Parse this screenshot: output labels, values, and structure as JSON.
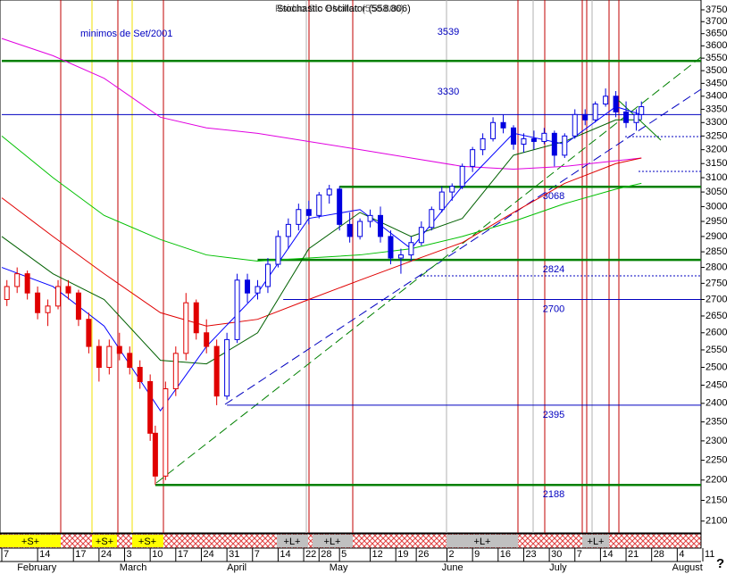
{
  "chart_data": {
    "type": "candlestick",
    "title": "Stochastic Oscillator (558.806)",
    "subtitle": "Rsiduo Sto BMatec (558.806)",
    "annotation": "minimos de Set/2001",
    "help": "?",
    "log_y": true,
    "ylim": [
      2072,
      3792
    ],
    "yticks": [
      2100,
      2150,
      2200,
      2250,
      2300,
      2350,
      2400,
      2450,
      2500,
      2550,
      2600,
      2650,
      2700,
      2750,
      2800,
      2850,
      2900,
      2950,
      3000,
      3050,
      3100,
      3150,
      3200,
      3250,
      3300,
      3350,
      3400,
      3450,
      3500,
      3550,
      3600,
      3650,
      3700,
      3750
    ],
    "xlim": [
      0,
      137
    ],
    "xticks": [
      {
        "value": 0,
        "label": "7"
      },
      {
        "value": 7,
        "label": "14"
      },
      {
        "value": 14,
        "label": "17"
      },
      {
        "value": 19,
        "label": "24"
      },
      {
        "value": 24,
        "label": "3"
      },
      {
        "value": 29,
        "label": "10"
      },
      {
        "value": 34,
        "label": "17"
      },
      {
        "value": 39,
        "label": "24"
      },
      {
        "value": 44,
        "label": "31"
      },
      {
        "value": 49,
        "label": "7"
      },
      {
        "value": 54,
        "label": "14"
      },
      {
        "value": 59,
        "label": "22"
      },
      {
        "value": 62,
        "label": "28"
      },
      {
        "value": 66,
        "label": "5"
      },
      {
        "value": 72,
        "label": "12"
      },
      {
        "value": 77,
        "label": "19"
      },
      {
        "value": 81,
        "label": "26"
      },
      {
        "value": 87,
        "label": "2"
      },
      {
        "value": 92,
        "label": "9"
      },
      {
        "value": 97,
        "label": "16"
      },
      {
        "value": 102,
        "label": "23"
      },
      {
        "value": 107,
        "label": "30"
      },
      {
        "value": 112,
        "label": "7"
      },
      {
        "value": 117,
        "label": "14"
      },
      {
        "value": 122,
        "label": "21"
      },
      {
        "value": 127,
        "label": "28"
      },
      {
        "value": 132,
        "label": "4"
      },
      {
        "value": 137,
        "label": "11"
      }
    ],
    "months": [
      {
        "value": 3,
        "label": "February"
      },
      {
        "value": 23,
        "label": "March"
      },
      {
        "value": 44,
        "label": "April"
      },
      {
        "value": 64,
        "label": "May"
      },
      {
        "value": 86,
        "label": "June"
      },
      {
        "value": 107,
        "label": "July"
      },
      {
        "value": 131,
        "label": "August"
      }
    ],
    "signals": [
      "+S+",
      "+S+",
      "+S+",
      "+L+",
      "+L+",
      "+L+",
      "+L+"
    ],
    "levels": [
      {
        "value": 3539,
        "start": 0,
        "color": "#008000"
      },
      {
        "value": 3330,
        "start": 0,
        "color": "#0000c0"
      },
      {
        "value": 3068,
        "start": 66,
        "color": "#008000"
      },
      {
        "value": 2824,
        "start": 50,
        "color": "#008000"
      },
      {
        "value": 2700,
        "start": 55,
        "color": "#0000c0"
      },
      {
        "value": 2395,
        "start": 44,
        "color": "#0000c0"
      },
      {
        "value": 2188,
        "start": 30,
        "color": "#008000"
      }
    ],
    "series": [
      {
        "color": "#e000e0",
        "x": [
          0,
          10,
          20,
          31,
          40,
          50,
          60,
          70,
          80,
          90,
          100,
          110,
          120,
          125
        ],
        "values": [
          3630,
          3560,
          3470,
          3320,
          3280,
          3260,
          3230,
          3200,
          3170,
          3140,
          3130,
          3140,
          3160,
          3170
        ]
      },
      {
        "color": "#e00000",
        "x": [
          0,
          10,
          20,
          31,
          40,
          50,
          60,
          70,
          80,
          90,
          100,
          110,
          120,
          125
        ],
        "values": [
          3030,
          2900,
          2780,
          2660,
          2620,
          2640,
          2700,
          2760,
          2820,
          2880,
          2980,
          3080,
          3150,
          3170
        ]
      },
      {
        "color": "#00c000",
        "x": [
          0,
          10,
          20,
          31,
          40,
          50,
          60,
          70,
          80,
          90,
          100,
          110,
          120,
          125
        ],
        "values": [
          3250,
          3100,
          2970,
          2890,
          2840,
          2820,
          2830,
          2840,
          2860,
          2900,
          2950,
          3010,
          3060,
          3080
        ]
      },
      {
        "color": "#006000",
        "x": [
          0,
          10,
          20,
          31,
          40,
          50,
          60,
          70,
          80,
          90,
          100,
          110,
          120,
          125
        ],
        "values": [
          2900,
          2780,
          2700,
          2520,
          2510,
          2600,
          2860,
          2980,
          2900,
          2960,
          3180,
          3230,
          3310,
          3310
        ]
      },
      {
        "color": "#0000ff",
        "x": [
          0,
          10,
          20,
          31,
          40,
          50,
          60,
          70,
          80,
          90,
          100,
          110,
          120,
          125
        ],
        "values": [
          2800,
          2740,
          2620,
          2380,
          2560,
          2720,
          2960,
          2990,
          2860,
          3070,
          3260,
          3220,
          3360,
          3330
        ]
      }
    ],
    "candle_series": [
      {
        "color": "#e00000",
        "candles": [
          {
            "x": 1,
            "open": 2700,
            "high": 2760,
            "low": 2680,
            "close": 2740
          },
          {
            "x": 3,
            "open": 2740,
            "high": 2800,
            "low": 2720,
            "close": 2780
          },
          {
            "x": 5,
            "open": 2780,
            "high": 2790,
            "low": 2700,
            "close": 2720
          },
          {
            "x": 7,
            "open": 2720,
            "high": 2740,
            "low": 2640,
            "close": 2660
          },
          {
            "x": 9,
            "open": 2660,
            "high": 2700,
            "low": 2620,
            "close": 2680
          },
          {
            "x": 11,
            "open": 2680,
            "high": 2760,
            "low": 2670,
            "close": 2740
          },
          {
            "x": 13,
            "open": 2740,
            "high": 2760,
            "low": 2700,
            "close": 2720
          },
          {
            "x": 15,
            "open": 2720,
            "high": 2730,
            "low": 2620,
            "close": 2640
          },
          {
            "x": 17,
            "open": 2640,
            "high": 2660,
            "low": 2540,
            "close": 2560
          },
          {
            "x": 19,
            "open": 2560,
            "high": 2580,
            "low": 2460,
            "close": 2500
          },
          {
            "x": 21,
            "open": 2500,
            "high": 2580,
            "low": 2480,
            "close": 2560
          },
          {
            "x": 23,
            "open": 2560,
            "high": 2600,
            "low": 2520,
            "close": 2540
          },
          {
            "x": 25,
            "open": 2540,
            "high": 2560,
            "low": 2480,
            "close": 2500
          },
          {
            "x": 27,
            "open": 2500,
            "high": 2520,
            "low": 2440,
            "close": 2460
          },
          {
            "x": 29,
            "open": 2460,
            "high": 2480,
            "low": 2300,
            "close": 2320
          },
          {
            "x": 30,
            "open": 2320,
            "high": 2340,
            "low": 2188,
            "close": 2210
          },
          {
            "x": 32,
            "open": 2210,
            "high": 2460,
            "low": 2200,
            "close": 2440
          },
          {
            "x": 34,
            "open": 2440,
            "high": 2560,
            "low": 2420,
            "close": 2540
          },
          {
            "x": 36,
            "open": 2540,
            "high": 2720,
            "low": 2520,
            "close": 2690
          },
          {
            "x": 38,
            "open": 2690,
            "high": 2700,
            "low": 2580,
            "close": 2600
          },
          {
            "x": 40,
            "open": 2600,
            "high": 2640,
            "low": 2540,
            "close": 2560
          },
          {
            "x": 42,
            "open": 2560,
            "high": 2580,
            "low": 2395,
            "close": 2420
          }
        ]
      },
      {
        "color": "#0000e0",
        "candles": [
          {
            "x": 44,
            "open": 2420,
            "high": 2600,
            "low": 2410,
            "close": 2580
          },
          {
            "x": 46,
            "open": 2580,
            "high": 2780,
            "low": 2570,
            "close": 2760
          },
          {
            "x": 48,
            "open": 2760,
            "high": 2780,
            "low": 2690,
            "close": 2720
          },
          {
            "x": 50,
            "open": 2720,
            "high": 2760,
            "low": 2700,
            "close": 2740
          },
          {
            "x": 52,
            "open": 2740,
            "high": 2830,
            "low": 2720,
            "close": 2810
          },
          {
            "x": 54,
            "open": 2810,
            "high": 2920,
            "low": 2800,
            "close": 2900
          },
          {
            "x": 56,
            "open": 2900,
            "high": 2960,
            "low": 2860,
            "close": 2940
          },
          {
            "x": 58,
            "open": 2940,
            "high": 3010,
            "low": 2920,
            "close": 2990
          },
          {
            "x": 60,
            "open": 2990,
            "high": 3020,
            "low": 2940,
            "close": 2970
          },
          {
            "x": 62,
            "open": 2970,
            "high": 3050,
            "low": 2960,
            "close": 3040
          },
          {
            "x": 64,
            "open": 3040,
            "high": 3075,
            "low": 3010,
            "close": 3060
          },
          {
            "x": 66,
            "open": 3060,
            "high": 3070,
            "low": 2920,
            "close": 2940
          },
          {
            "x": 68,
            "open": 2940,
            "high": 2980,
            "low": 2880,
            "close": 2900
          },
          {
            "x": 70,
            "open": 2900,
            "high": 2960,
            "low": 2890,
            "close": 2950
          },
          {
            "x": 72,
            "open": 2950,
            "high": 2990,
            "low": 2930,
            "close": 2970
          },
          {
            "x": 74,
            "open": 2970,
            "high": 3000,
            "low": 2880,
            "close": 2900
          },
          {
            "x": 76,
            "open": 2900,
            "high": 2920,
            "low": 2810,
            "close": 2830
          },
          {
            "x": 78,
            "open": 2830,
            "high": 2860,
            "low": 2780,
            "close": 2840
          },
          {
            "x": 80,
            "open": 2840,
            "high": 2900,
            "low": 2820,
            "close": 2880
          },
          {
            "x": 82,
            "open": 2880,
            "high": 2950,
            "low": 2870,
            "close": 2930
          },
          {
            "x": 84,
            "open": 2930,
            "high": 3000,
            "low": 2920,
            "close": 2990
          },
          {
            "x": 86,
            "open": 2990,
            "high": 3070,
            "low": 2980,
            "close": 3050
          },
          {
            "x": 88,
            "open": 3050,
            "high": 3080,
            "low": 3020,
            "close": 3070
          },
          {
            "x": 90,
            "open": 3070,
            "high": 3150,
            "low": 3060,
            "close": 3140
          },
          {
            "x": 92,
            "open": 3140,
            "high": 3210,
            "low": 3120,
            "close": 3200
          },
          {
            "x": 94,
            "open": 3200,
            "high": 3260,
            "low": 3180,
            "close": 3240
          },
          {
            "x": 96,
            "open": 3240,
            "high": 3320,
            "low": 3230,
            "close": 3300
          },
          {
            "x": 98,
            "open": 3300,
            "high": 3330,
            "low": 3260,
            "close": 3280
          },
          {
            "x": 100,
            "open": 3280,
            "high": 3290,
            "low": 3200,
            "close": 3220
          },
          {
            "x": 102,
            "open": 3220,
            "high": 3260,
            "low": 3190,
            "close": 3240
          },
          {
            "x": 104,
            "open": 3240,
            "high": 3270,
            "low": 3200,
            "close": 3230
          },
          {
            "x": 106,
            "open": 3230,
            "high": 3280,
            "low": 3220,
            "close": 3260
          },
          {
            "x": 108,
            "open": 3260,
            "high": 3270,
            "low": 3140,
            "close": 3180
          },
          {
            "x": 110,
            "open": 3180,
            "high": 3260,
            "low": 3170,
            "close": 3250
          },
          {
            "x": 112,
            "open": 3250,
            "high": 3350,
            "low": 3240,
            "close": 3330
          },
          {
            "x": 114,
            "open": 3330,
            "high": 3350,
            "low": 3290,
            "close": 3310
          },
          {
            "x": 116,
            "open": 3310,
            "high": 3380,
            "low": 3300,
            "close": 3370
          },
          {
            "x": 118,
            "open": 3370,
            "high": 3430,
            "low": 3360,
            "close": 3400
          },
          {
            "x": 120,
            "open": 3400,
            "high": 3420,
            "low": 3320,
            "close": 3340
          },
          {
            "x": 122,
            "open": 3340,
            "high": 3380,
            "low": 3280,
            "close": 3300
          },
          {
            "x": 124,
            "open": 3300,
            "high": 3350,
            "low": 3270,
            "close": 3330
          },
          {
            "x": 125,
            "open": 3330,
            "high": 3380,
            "low": 3310,
            "close": 3360
          }
        ]
      }
    ]
  }
}
